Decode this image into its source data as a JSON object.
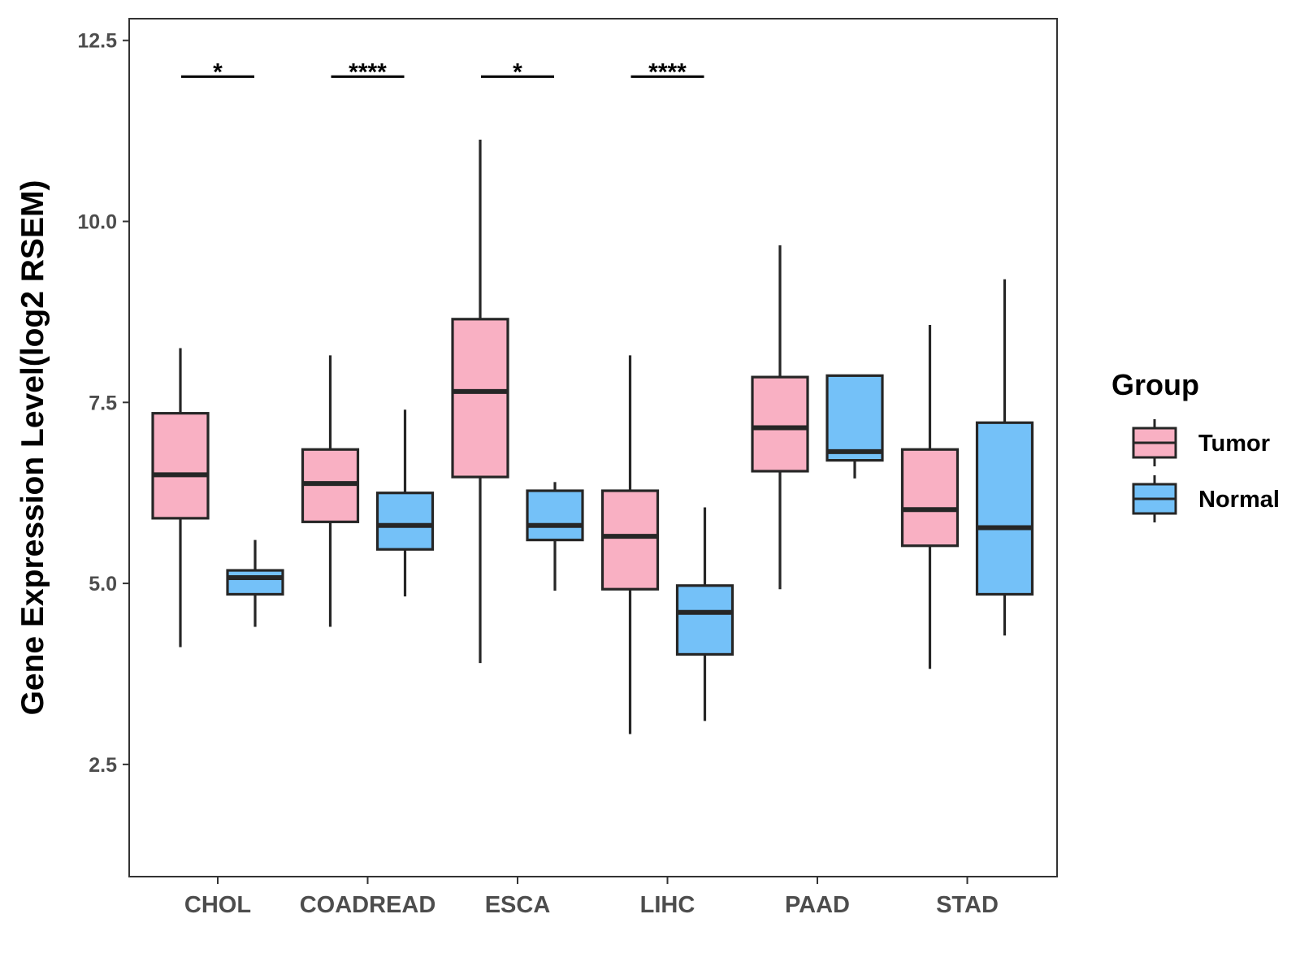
{
  "chart_data": {
    "type": "boxplot",
    "title": "",
    "xlabel": "",
    "ylabel": "Gene Expression Level(log2 RSEM)",
    "ylim": [
      0.95,
      12.8
    ],
    "yticks": [
      "2.5",
      "5.0",
      "7.5",
      "10.0",
      "12.5"
    ],
    "ytick_values": [
      2.5,
      5.0,
      7.5,
      10.0,
      12.5
    ],
    "grid": false,
    "categories": [
      "CHOL",
      "COADREAD",
      "ESCA",
      "LIHC",
      "PAAD",
      "STAD"
    ],
    "legend": {
      "title": "Group",
      "position": "right",
      "entries": [
        {
          "name": "Tumor",
          "color": "#f9b0c3"
        },
        {
          "name": "Normal",
          "color": "#74c1f8"
        }
      ]
    },
    "series": [
      {
        "name": "Tumor",
        "color": "#f9b0c3",
        "boxes": [
          {
            "min": 4.12,
            "q1": 5.9,
            "median": 6.5,
            "q3": 7.35,
            "max": 8.25
          },
          {
            "min": 4.4,
            "q1": 5.85,
            "median": 6.38,
            "q3": 6.85,
            "max": 8.15
          },
          {
            "min": 3.9,
            "q1": 6.47,
            "median": 7.65,
            "q3": 8.65,
            "max": 11.13
          },
          {
            "min": 2.92,
            "q1": 4.92,
            "median": 5.65,
            "q3": 6.28,
            "max": 8.15
          },
          {
            "min": 4.92,
            "q1": 6.55,
            "median": 7.15,
            "q3": 7.85,
            "max": 9.67
          },
          {
            "min": 3.82,
            "q1": 5.52,
            "median": 6.02,
            "q3": 6.85,
            "max": 8.57
          }
        ]
      },
      {
        "name": "Normal",
        "color": "#74c1f8",
        "boxes": [
          {
            "min": 4.4,
            "q1": 4.85,
            "median": 5.08,
            "q3": 5.18,
            "max": 5.6
          },
          {
            "min": 4.82,
            "q1": 5.47,
            "median": 5.8,
            "q3": 6.25,
            "max": 7.4
          },
          {
            "min": 4.9,
            "q1": 5.6,
            "median": 5.8,
            "q3": 6.28,
            "max": 6.4
          },
          {
            "min": 3.1,
            "q1": 4.02,
            "median": 4.6,
            "q3": 4.97,
            "max": 6.05
          },
          {
            "min": 6.45,
            "q1": 6.7,
            "median": 6.82,
            "q3": 7.87,
            "max": 7.87
          },
          {
            "min": 4.28,
            "q1": 4.85,
            "median": 5.77,
            "q3": 7.22,
            "max": 9.2
          }
        ]
      }
    ],
    "significance": [
      {
        "category": "CHOL",
        "label": "*",
        "y": 12.0
      },
      {
        "category": "COADREAD",
        "label": "****",
        "y": 12.0
      },
      {
        "category": "ESCA",
        "label": "*",
        "y": 12.0
      },
      {
        "category": "LIHC",
        "label": "****",
        "y": 12.0
      }
    ]
  }
}
